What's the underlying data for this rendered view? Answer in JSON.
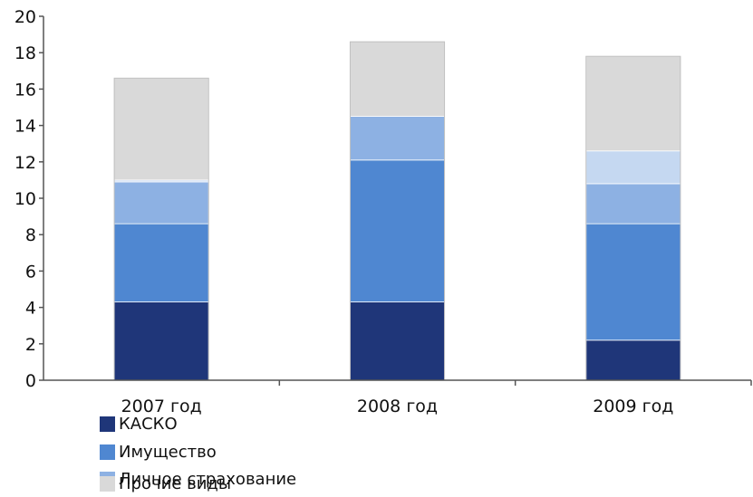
{
  "chart_data": {
    "type": "bar",
    "stacked": true,
    "categories": [
      "2007 год",
      "2008 год",
      "2009 год"
    ],
    "series": [
      {
        "name": "КАСКО",
        "color": "#1f3679",
        "values": [
          4.3,
          4.3,
          2.2
        ]
      },
      {
        "name": "Имущество",
        "color": "#4f87d1",
        "values": [
          4.3,
          7.8,
          6.4
        ]
      },
      {
        "name": "Личное страхование",
        "color": "#8db1e3",
        "values": [
          2.3,
          2.4,
          2.2
        ]
      },
      {
        "name": "",
        "color": "#c5d8f1",
        "values": [
          0.1,
          0.0,
          1.8
        ]
      },
      {
        "name": "Прочие виды",
        "color": "#d9d9d9",
        "values": [
          5.6,
          4.1,
          5.2
        ]
      }
    ],
    "ylim": [
      0,
      20
    ],
    "yticks": [
      0,
      2,
      4,
      6,
      8,
      10,
      12,
      14,
      16,
      18,
      20
    ],
    "grid": false,
    "legend_placement": "bottom-left"
  }
}
